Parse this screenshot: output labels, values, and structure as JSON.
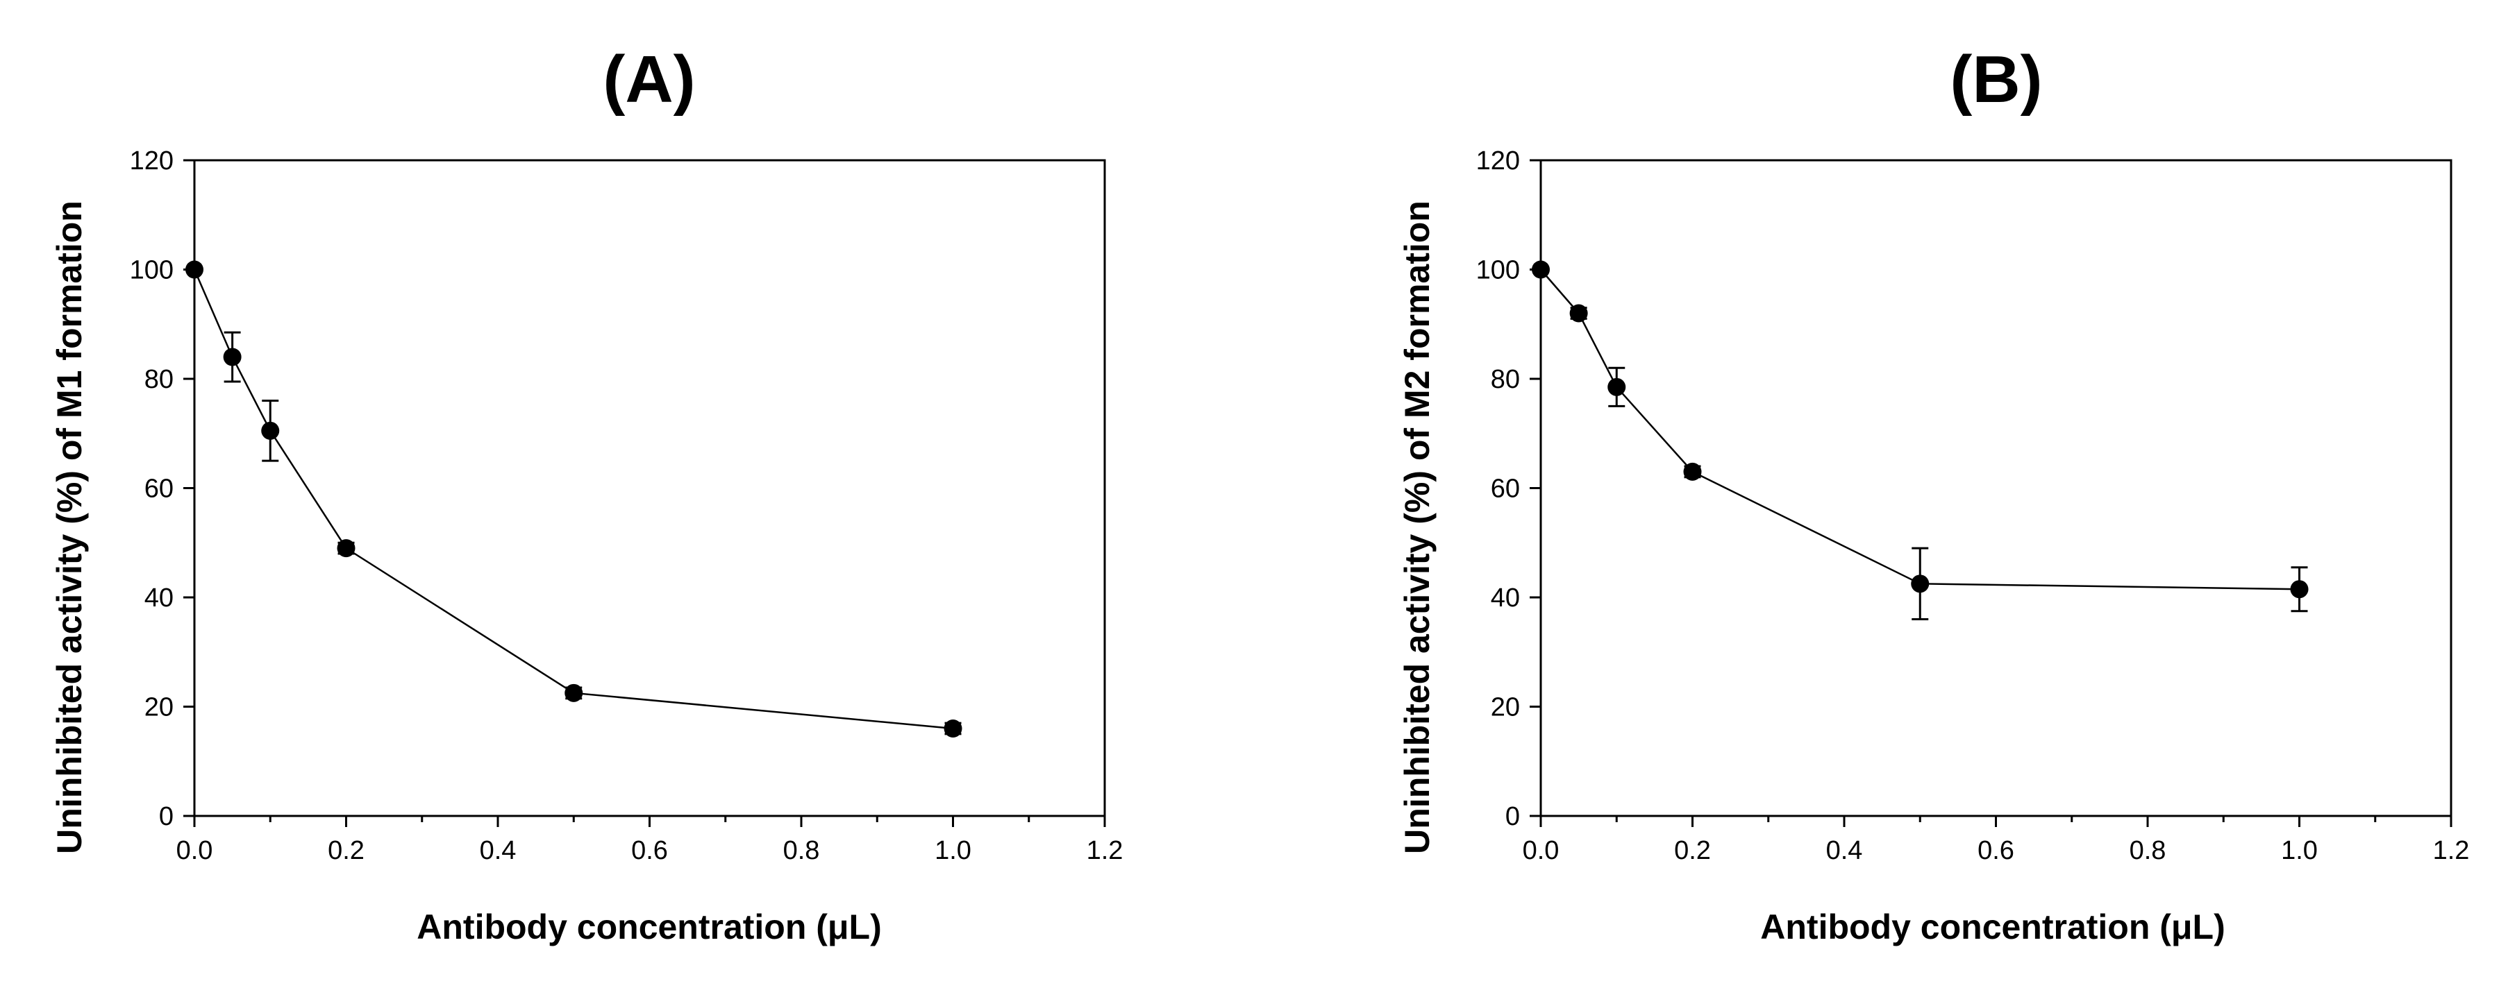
{
  "chart_data": [
    {
      "type": "line",
      "title": "(A)",
      "xlabel": "Antibody concentration (μL)",
      "ylabel": "Uninhibited activity (%)  of M1 formation",
      "xlim": [
        0,
        1.2
      ],
      "ylim": [
        0,
        120
      ],
      "xticks": [
        "0.0",
        "0.2",
        "0.4",
        "0.6",
        "0.8",
        "1.0",
        "1.2"
      ],
      "yticks": [
        "0",
        "20",
        "40",
        "60",
        "80",
        "100",
        "120"
      ],
      "grid": false,
      "series": [
        {
          "x": [
            0.0,
            0.05,
            0.1,
            0.2,
            0.5,
            1.0
          ],
          "y": [
            100,
            84,
            70.5,
            49,
            22.5,
            16
          ],
          "err": [
            0,
            4.5,
            5.5,
            1,
            1,
            1
          ]
        }
      ]
    },
    {
      "type": "line",
      "title": "(B)",
      "xlabel": "Antibody concentration (μL)",
      "ylabel": "Uninhibited activity (%)  of M2 formation",
      "xlim": [
        0,
        1.2
      ],
      "ylim": [
        0,
        120
      ],
      "xticks": [
        "0.0",
        "0.2",
        "0.4",
        "0.6",
        "0.8",
        "1.0",
        "1.2"
      ],
      "yticks": [
        "0",
        "20",
        "40",
        "60",
        "80",
        "100",
        "120"
      ],
      "grid": false,
      "series": [
        {
          "x": [
            0.0,
            0.05,
            0.1,
            0.2,
            0.5,
            1.0
          ],
          "y": [
            100,
            92,
            78.5,
            63,
            42.5,
            41.5
          ],
          "err": [
            0,
            1,
            3.5,
            1,
            6.5,
            4
          ]
        }
      ]
    }
  ]
}
